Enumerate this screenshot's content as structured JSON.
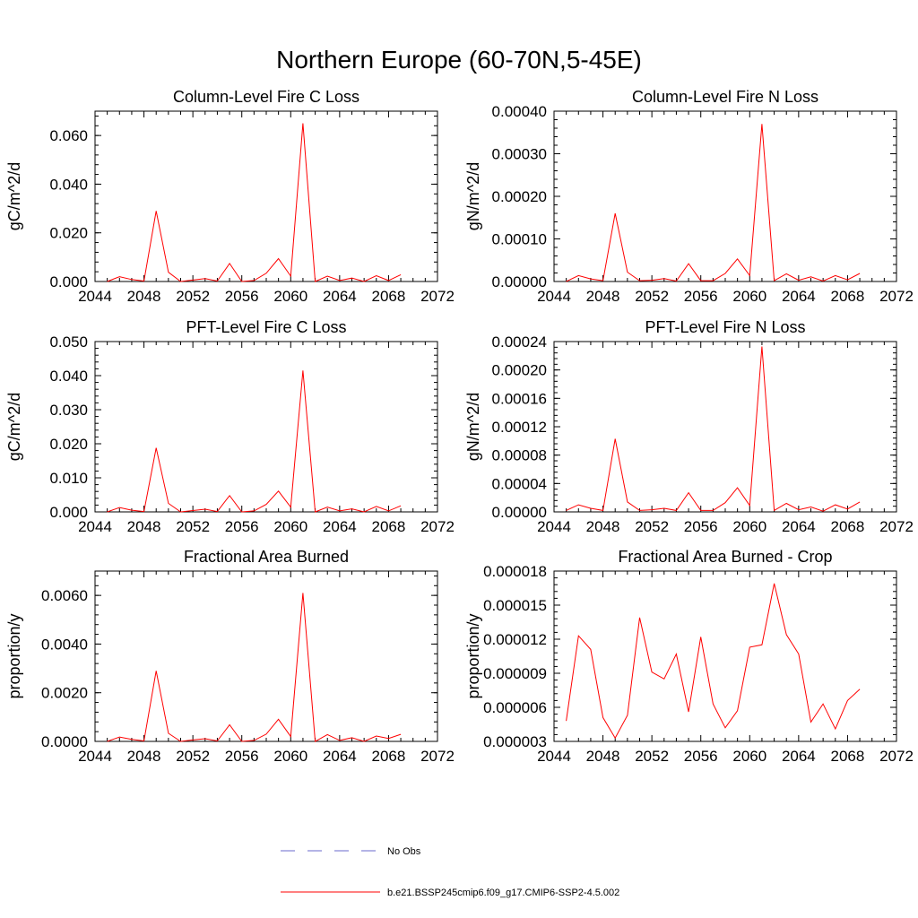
{
  "figure": {
    "title": "Northern Europe (60-70N,5-45E)"
  },
  "legend": {
    "items": [
      {
        "label": "No Obs",
        "color": "#6a6acd",
        "style": "dashed"
      },
      {
        "label": "b.e21.BSSP245cmip6.f09_g17.CMIP6-SSP2-4.5.002",
        "color": "#ff0000",
        "style": "solid"
      }
    ]
  },
  "colors": {
    "series": "#ff0000",
    "obs": "#6a6acd",
    "axis": "#000000"
  },
  "chart_data": [
    {
      "type": "line",
      "title": "Column-Level Fire C Loss",
      "ylabel": "gC/m^2/d",
      "xlim": [
        2044,
        2072
      ],
      "ylim": [
        0,
        0.07
      ],
      "xticks": [
        "2044",
        "2048",
        "2052",
        "2056",
        "2060",
        "2064",
        "2068",
        "2072"
      ],
      "yticks": [
        {
          "v": 0.0,
          "label": "0.000"
        },
        {
          "v": 0.02,
          "label": "0.020"
        },
        {
          "v": 0.04,
          "label": "0.040"
        },
        {
          "v": 0.06,
          "label": "0.060"
        }
      ],
      "x": [
        2045,
        2046,
        2047,
        2048,
        2049,
        2050,
        2051,
        2052,
        2053,
        2054,
        2055,
        2056,
        2057,
        2058,
        2059,
        2060,
        2061,
        2062,
        2063,
        2064,
        2065,
        2066,
        2067,
        2068,
        2069
      ],
      "series": [
        {
          "name": "b.e21.BSSP245cmip6.f09_g17.CMIP6-SSP2-4.5.002",
          "values": [
            0.0,
            0.002,
            0.0008,
            0.0002,
            0.029,
            0.0038,
            0.0,
            0.0006,
            0.0012,
            0.0002,
            0.0074,
            0.0,
            0.0004,
            0.0034,
            0.0094,
            0.0022,
            0.065,
            0.0,
            0.0022,
            0.0004,
            0.0014,
            0.0,
            0.0024,
            0.0004,
            0.0028
          ]
        }
      ]
    },
    {
      "type": "line",
      "title": "Column-Level Fire N Loss",
      "ylabel": "gN/m^2/d",
      "xlim": [
        2044,
        2072
      ],
      "ylim": [
        0,
        0.0004
      ],
      "xticks": [
        "2044",
        "2048",
        "2052",
        "2056",
        "2060",
        "2064",
        "2068",
        "2072"
      ],
      "yticks": [
        {
          "v": 0.0,
          "label": "0.00000"
        },
        {
          "v": 0.0001,
          "label": "0.00010"
        },
        {
          "v": 0.0002,
          "label": "0.00020"
        },
        {
          "v": 0.0003,
          "label": "0.00030"
        },
        {
          "v": 0.0004,
          "label": "0.00040"
        }
      ],
      "x": [
        2045,
        2046,
        2047,
        2048,
        2049,
        2050,
        2051,
        2052,
        2053,
        2054,
        2055,
        2056,
        2057,
        2058,
        2059,
        2060,
        2061,
        2062,
        2063,
        2064,
        2065,
        2066,
        2067,
        2068,
        2069
      ],
      "series": [
        {
          "name": "b.e21.BSSP245cmip6.f09_g17.CMIP6-SSP2-4.5.002",
          "values": [
            0.0,
            1.4e-05,
            6e-06,
            2e-06,
            0.00016,
            2.2e-05,
            2e-06,
            3e-06,
            7e-06,
            1e-06,
            4.2e-05,
            2e-06,
            2e-06,
            1.9e-05,
            5.3e-05,
            1.4e-05,
            0.00037,
            2e-06,
            1.8e-05,
            3e-06,
            1.1e-05,
            1e-06,
            1.4e-05,
            4e-06,
            1.9e-05
          ]
        }
      ]
    },
    {
      "type": "line",
      "title": "PFT-Level Fire C Loss",
      "ylabel": "gC/m^2/d",
      "xlim": [
        2044,
        2072
      ],
      "ylim": [
        0,
        0.05
      ],
      "xticks": [
        "2044",
        "2048",
        "2052",
        "2056",
        "2060",
        "2064",
        "2068",
        "2072"
      ],
      "yticks": [
        {
          "v": 0.0,
          "label": "0.000"
        },
        {
          "v": 0.01,
          "label": "0.010"
        },
        {
          "v": 0.02,
          "label": "0.020"
        },
        {
          "v": 0.03,
          "label": "0.030"
        },
        {
          "v": 0.04,
          "label": "0.040"
        },
        {
          "v": 0.05,
          "label": "0.050"
        }
      ],
      "x": [
        2045,
        2046,
        2047,
        2048,
        2049,
        2050,
        2051,
        2052,
        2053,
        2054,
        2055,
        2056,
        2057,
        2058,
        2059,
        2060,
        2061,
        2062,
        2063,
        2064,
        2065,
        2066,
        2067,
        2068,
        2069
      ],
      "series": [
        {
          "name": "b.e21.BSSP245cmip6.f09_g17.CMIP6-SSP2-4.5.002",
          "values": [
            0.0,
            0.0013,
            0.0005,
            0.0001,
            0.0188,
            0.0025,
            0.0,
            0.0004,
            0.0008,
            0.0001,
            0.0048,
            0.0,
            0.0003,
            0.0022,
            0.0061,
            0.0014,
            0.0415,
            0.0,
            0.0014,
            0.0003,
            0.0009,
            0.0,
            0.0016,
            0.0003,
            0.0018
          ]
        }
      ]
    },
    {
      "type": "line",
      "title": "PFT-Level Fire N Loss",
      "ylabel": "gN/m^2/d",
      "xlim": [
        2044,
        2072
      ],
      "ylim": [
        0,
        0.00024
      ],
      "xticks": [
        "2044",
        "2048",
        "2052",
        "2056",
        "2060",
        "2064",
        "2068",
        "2072"
      ],
      "yticks": [
        {
          "v": 0.0,
          "label": "0.00000"
        },
        {
          "v": 4e-05,
          "label": "0.00004"
        },
        {
          "v": 8e-05,
          "label": "0.00008"
        },
        {
          "v": 0.00012,
          "label": "0.00012"
        },
        {
          "v": 0.00016,
          "label": "0.00016"
        },
        {
          "v": 0.0002,
          "label": "0.00020"
        },
        {
          "v": 0.00024,
          "label": "0.00024"
        }
      ],
      "x": [
        2045,
        2046,
        2047,
        2048,
        2049,
        2050,
        2051,
        2052,
        2053,
        2054,
        2055,
        2056,
        2057,
        2058,
        2059,
        2060,
        2061,
        2062,
        2063,
        2064,
        2065,
        2066,
        2067,
        2068,
        2069
      ],
      "series": [
        {
          "name": "b.e21.BSSP245cmip6.f09_g17.CMIP6-SSP2-4.5.002",
          "values": [
            2e-06,
            1e-05,
            5e-06,
            2e-06,
            0.000103,
            1.4e-05,
            2e-06,
            3e-06,
            5e-06,
            2e-06,
            2.7e-05,
            2e-06,
            2e-06,
            1.3e-05,
            3.4e-05,
            9e-06,
            0.000233,
            2e-06,
            1.2e-05,
            3e-06,
            7e-06,
            1e-06,
            1e-05,
            4e-06,
            1.4e-05
          ]
        }
      ]
    },
    {
      "type": "line",
      "title": "Fractional Area Burned",
      "ylabel": "proportion/y",
      "xlim": [
        2044,
        2072
      ],
      "ylim": [
        0,
        0.007
      ],
      "xticks": [
        "2044",
        "2048",
        "2052",
        "2056",
        "2060",
        "2064",
        "2068",
        "2072"
      ],
      "yticks": [
        {
          "v": 0.0,
          "label": "0.0000"
        },
        {
          "v": 0.002,
          "label": "0.0020"
        },
        {
          "v": 0.004,
          "label": "0.0040"
        },
        {
          "v": 0.006,
          "label": "0.0060"
        }
      ],
      "x": [
        2045,
        2046,
        2047,
        2048,
        2049,
        2050,
        2051,
        2052,
        2053,
        2054,
        2055,
        2056,
        2057,
        2058,
        2059,
        2060,
        2061,
        2062,
        2063,
        2064,
        2065,
        2066,
        2067,
        2068,
        2069
      ],
      "series": [
        {
          "name": "b.e21.BSSP245cmip6.f09_g17.CMIP6-SSP2-4.5.002",
          "values": [
            0.0,
            0.00018,
            8e-05,
            2e-05,
            0.0029,
            0.00033,
            0.0,
            6e-05,
            0.00011,
            2e-05,
            0.00068,
            0.0,
            4e-05,
            0.0003,
            0.00091,
            0.0002,
            0.0061,
            0.0,
            0.00028,
            4e-05,
            0.00015,
            0.0,
            0.00022,
            0.00012,
            0.00029
          ]
        }
      ]
    },
    {
      "type": "line",
      "title": "Fractional Area Burned - Crop",
      "ylabel": "proportion/y",
      "xlim": [
        2044,
        2072
      ],
      "ylim": [
        3e-06,
        1.8e-05
      ],
      "xticks": [
        "2044",
        "2048",
        "2052",
        "2056",
        "2060",
        "2064",
        "2068",
        "2072"
      ],
      "yticks": [
        {
          "v": 3e-06,
          "label": "0.000003"
        },
        {
          "v": 6e-06,
          "label": "0.000006"
        },
        {
          "v": 9e-06,
          "label": "0.000009"
        },
        {
          "v": 1.2e-05,
          "label": "0.000012"
        },
        {
          "v": 1.5e-05,
          "label": "0.000015"
        },
        {
          "v": 1.8e-05,
          "label": "0.000018"
        }
      ],
      "x": [
        2045,
        2046,
        2047,
        2048,
        2049,
        2050,
        2051,
        2052,
        2053,
        2054,
        2055,
        2056,
        2057,
        2058,
        2059,
        2060,
        2061,
        2062,
        2063,
        2064,
        2065,
        2066,
        2067,
        2068,
        2069
      ],
      "series": [
        {
          "name": "b.e21.BSSP245cmip6.f09_g17.CMIP6-SSP2-4.5.002",
          "values": [
            4.8e-06,
            1.23e-05,
            1.11e-05,
            5.1e-06,
            3.3e-06,
            5.3e-06,
            1.39e-05,
            9.1e-06,
            8.5e-06,
            1.07e-05,
            5.6e-06,
            1.22e-05,
            6.3e-06,
            4.2e-06,
            5.7e-06,
            1.13e-05,
            1.15e-05,
            1.69e-05,
            1.24e-05,
            1.07e-05,
            4.7e-06,
            6.3e-06,
            4.1e-06,
            6.6e-06,
            7.6e-06
          ]
        }
      ]
    }
  ]
}
